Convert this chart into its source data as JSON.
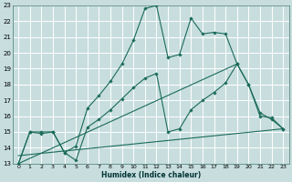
{
  "xlabel": "Humidex (Indice chaleur)",
  "bg_color": "#c8dede",
  "grid_color": "#b0cccc",
  "line_color": "#1a6b5a",
  "xlim": [
    -0.5,
    23.5
  ],
  "ylim": [
    13,
    23
  ],
  "yticks": [
    13,
    14,
    15,
    16,
    17,
    18,
    19,
    20,
    21,
    22,
    23
  ],
  "xticks": [
    0,
    1,
    2,
    3,
    4,
    5,
    6,
    7,
    8,
    9,
    10,
    11,
    12,
    13,
    14,
    15,
    16,
    17,
    18,
    19,
    20,
    21,
    22,
    23
  ],
  "series": [
    {
      "x": [
        0,
        1,
        2,
        3,
        4,
        5,
        6,
        7,
        8,
        9,
        10,
        11,
        12,
        13,
        14,
        15,
        16,
        17,
        18,
        19,
        20,
        21,
        22,
        23
      ],
      "y": [
        13,
        15,
        15,
        15,
        13.7,
        14.1,
        16.5,
        17.3,
        18.2,
        19.3,
        20.8,
        22.8,
        23.0,
        19.7,
        19.9,
        22.2,
        21.2,
        21.3,
        21.2,
        19.3,
        18.0,
        16.0,
        15.9,
        15.2
      ],
      "marker": true
    },
    {
      "x": [
        0,
        1,
        2,
        3,
        4,
        5,
        6,
        7,
        8,
        9,
        10,
        11,
        12,
        13,
        14,
        15,
        16,
        17,
        18,
        19,
        20,
        21,
        22,
        23
      ],
      "y": [
        13,
        15,
        14.9,
        15.0,
        13.7,
        13.2,
        15.3,
        15.8,
        16.4,
        17.1,
        17.8,
        18.4,
        18.7,
        15.0,
        15.2,
        16.4,
        17.0,
        17.5,
        18.1,
        19.3,
        18.0,
        16.2,
        15.8,
        15.2
      ],
      "marker": true
    },
    {
      "x": [
        0,
        19
      ],
      "y": [
        13,
        19.3
      ],
      "marker": false
    },
    {
      "x": [
        0,
        23
      ],
      "y": [
        13.5,
        15.2
      ],
      "marker": false
    }
  ]
}
